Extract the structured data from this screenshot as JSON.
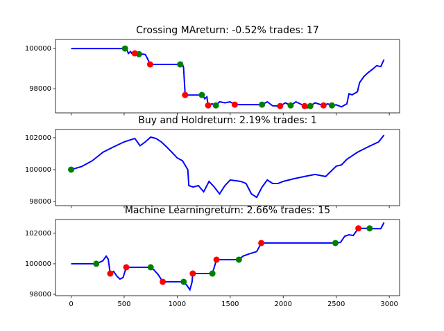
{
  "chart_data": [
    {
      "type": "line",
      "title": "Crossing MAreturn: -0.52% trades: 17",
      "color": "#0000ff",
      "x": [
        0,
        500,
        520,
        540,
        560,
        580,
        600,
        640,
        680,
        700,
        720,
        745,
        1030,
        1045,
        1060,
        1075,
        1240,
        1260,
        1280,
        1292,
        1330,
        1365,
        1400,
        1450,
        1500,
        1543,
        1800,
        1850,
        1900,
        1971,
        2020,
        2070,
        2120,
        2202,
        2230,
        2255,
        2300,
        2380,
        2420,
        2459,
        2500,
        2550,
        2600,
        2620,
        2650,
        2700,
        2720,
        2760,
        2800,
        2850,
        2880,
        2920,
        2950
      ],
      "values": [
        100000,
        100000,
        100020,
        99750,
        99850,
        99700,
        99760,
        99720,
        99720,
        99700,
        99500,
        99210,
        99210,
        99300,
        99050,
        97690,
        97690,
        97500,
        97600,
        97170,
        97250,
        97170,
        97350,
        97300,
        97350,
        97210,
        97210,
        97350,
        97150,
        97140,
        97300,
        97170,
        97350,
        97140,
        97050,
        97140,
        97300,
        97170,
        97250,
        97170,
        97200,
        97100,
        97250,
        97750,
        97700,
        97850,
        98300,
        98600,
        98800,
        99000,
        99150,
        99100,
        99450
      ],
      "markers": [
        {
          "color": "#008000",
          "x": [
            508,
            640,
            1028,
            1233,
            1365,
            1800,
            2070,
            2255,
            2459
          ],
          "values": [
            100000,
            99720,
            99210,
            97690,
            97170,
            97210,
            97170,
            97140,
            97170
          ]
        },
        {
          "color": "#ff0000",
          "x": [
            600,
            745,
            1075,
            1292,
            1543,
            1971,
            2202,
            2380
          ],
          "values": [
            99760,
            99210,
            97690,
            97170,
            97210,
            97140,
            97140,
            97170
          ]
        }
      ],
      "xlim": [
        -147.5,
        3097.5
      ],
      "xticks": [
        0,
        500,
        1000,
        1500,
        2000,
        2500,
        3000
      ],
      "show_xtick_labels": false,
      "ylim": [
        96800,
        100450
      ],
      "yticks": [
        98000,
        100000
      ]
    },
    {
      "type": "line",
      "title": "Buy and Holdreturn: 2.19% trades: 1",
      "color": "#0000ff",
      "x": [
        0,
        100,
        200,
        300,
        400,
        500,
        600,
        650,
        700,
        750,
        800,
        850,
        900,
        950,
        1000,
        1050,
        1100,
        1110,
        1150,
        1200,
        1250,
        1300,
        1350,
        1400,
        1450,
        1500,
        1600,
        1650,
        1700,
        1750,
        1800,
        1850,
        1900,
        1950,
        2000,
        2100,
        2200,
        2300,
        2400,
        2500,
        2550,
        2600,
        2700,
        2800,
        2900,
        2950
      ],
      "values": [
        100000,
        100200,
        100560,
        101090,
        101430,
        101740,
        101960,
        101500,
        101740,
        102040,
        101960,
        101740,
        101430,
        101090,
        100740,
        100560,
        100000,
        99000,
        98910,
        99000,
        98610,
        99260,
        98910,
        98480,
        99000,
        99350,
        99260,
        99130,
        98480,
        98260,
        98910,
        99350,
        99130,
        99130,
        99260,
        99430,
        99570,
        99700,
        99570,
        100220,
        100300,
        100650,
        101090,
        101430,
        101740,
        102170
      ],
      "markers": [
        {
          "color": "#008000",
          "x": [
            0
          ],
          "values": [
            100000
          ]
        }
      ],
      "xlim": [
        -147.5,
        3097.5
      ],
      "xticks": [
        0,
        500,
        1000,
        1500,
        2000,
        2500,
        3000
      ],
      "show_xtick_labels": false,
      "ylim": [
        97740,
        102520
      ],
      "yticks": [
        98000,
        100000,
        102000
      ]
    },
    {
      "type": "line",
      "title": "Machine Learningreturn: 2.66% trades: 15",
      "color": "#0000ff",
      "x": [
        0,
        237,
        270,
        300,
        330,
        350,
        369,
        400,
        430,
        460,
        490,
        520,
        750,
        780,
        820,
        864,
        1061,
        1090,
        1120,
        1140,
        1147,
        1332,
        1371,
        1582,
        1620,
        1680,
        1750,
        1793,
        2492,
        2540,
        2580,
        2620,
        2660,
        2709,
        2815,
        2860,
        2920,
        2950
      ],
      "values": [
        100000,
        100000,
        100100,
        100200,
        100500,
        100300,
        99360,
        99500,
        99200,
        99000,
        99100,
        99770,
        99770,
        99600,
        99300,
        98820,
        98820,
        98600,
        98300,
        98800,
        99360,
        99360,
        100270,
        100270,
        100500,
        100650,
        100800,
        101360,
        101360,
        101400,
        101800,
        101900,
        101850,
        102320,
        102320,
        102300,
        102300,
        102700
      ],
      "markers": [
        {
          "color": "#008000",
          "x": [
            237,
            750,
            1061,
            1332,
            1582,
            2492,
            2815
          ],
          "values": [
            100000,
            99770,
            98820,
            99360,
            100270,
            101360,
            102320
          ]
        },
        {
          "color": "#ff0000",
          "x": [
            369,
            520,
            864,
            1147,
            1371,
            1793,
            2709
          ],
          "values": [
            99360,
            99770,
            98820,
            99360,
            100270,
            101360,
            102320
          ]
        }
      ],
      "xlim": [
        -147.5,
        3097.5
      ],
      "xticks": [
        0,
        500,
        1000,
        1500,
        2000,
        2500,
        3000
      ],
      "show_xtick_labels": true,
      "ylim": [
        97910,
        102900
      ],
      "yticks": [
        98000,
        100000,
        102000
      ]
    }
  ]
}
